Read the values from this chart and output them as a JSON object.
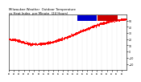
{
  "background_color": "#ffffff",
  "plot_bg": "#ffffff",
  "dot_color": "#ff0000",
  "dot_size": 0.4,
  "ylim": [
    -30,
    60
  ],
  "ytick_values": [
    -20,
    -10,
    0,
    10,
    20,
    30,
    40,
    50
  ],
  "xlim": [
    0,
    1439
  ],
  "grid_color": "#aaaaaa",
  "legend_blue": "#0000cc",
  "legend_red": "#cc0000",
  "title_text": "Milwaukee Weather  Outdoor Temperature\nvs Heat Index  per Minute  (24 Hours)",
  "title_fontsize": 2.8,
  "tick_fontsize": 2.2,
  "num_minutes": 1440,
  "seed": 42,
  "curve_min_val": 12.0,
  "curve_max_val": 52.0,
  "curve_min_minute": 300,
  "curve_period": 1140,
  "start_val": 20.0,
  "end_val": 18.0,
  "noise_std": 0.9
}
